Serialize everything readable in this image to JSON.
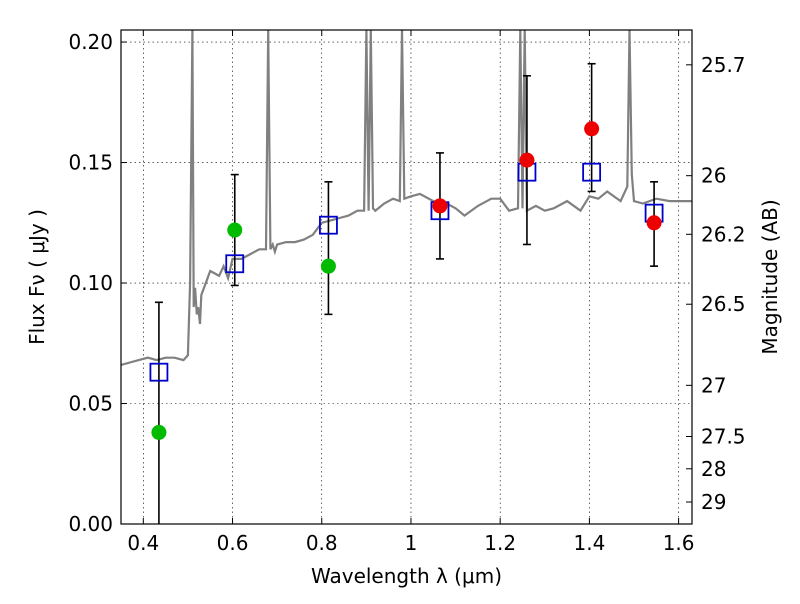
{
  "chart_data": {
    "type": "scatter",
    "xlabel": "Wavelength  λ (μm)",
    "ylabel": "Flux  Fν  ( μJy )",
    "ylabel_right": "Magnitude (AB)",
    "xlim": [
      0.35,
      1.63
    ],
    "ylim": [
      0.0,
      0.205
    ],
    "grid": true,
    "grid_style": "dotted",
    "x_ticks": [
      {
        "value": 0.4,
        "label": "0.4"
      },
      {
        "value": 0.6,
        "label": "0.6"
      },
      {
        "value": 0.8,
        "label": "0.8"
      },
      {
        "value": 1.0,
        "label": "1"
      },
      {
        "value": 1.2,
        "label": "1.2"
      },
      {
        "value": 1.4,
        "label": "1.4"
      },
      {
        "value": 1.6,
        "label": "1.6"
      }
    ],
    "y_ticks": [
      {
        "value": 0.0,
        "label": "0.00"
      },
      {
        "value": 0.05,
        "label": "0.05"
      },
      {
        "value": 0.1,
        "label": "0.10"
      },
      {
        "value": 0.15,
        "label": "0.15"
      },
      {
        "value": 0.2,
        "label": "0.20"
      }
    ],
    "right_ticks": [
      {
        "value": 25.7,
        "label": "25.7"
      },
      {
        "value": 26.0,
        "label": "26"
      },
      {
        "value": 26.2,
        "label": "26.2"
      },
      {
        "value": 26.5,
        "label": "26.5"
      },
      {
        "value": 27.0,
        "label": "27"
      },
      {
        "value": 27.5,
        "label": "27.5"
      },
      {
        "value": 28.0,
        "label": "28"
      },
      {
        "value": 29.0,
        "label": "29"
      }
    ],
    "series": [
      {
        "type": "line",
        "color": "#808080",
        "x": [
          0.35,
          0.37,
          0.39,
          0.41,
          0.43,
          0.45,
          0.47,
          0.49,
          0.5,
          0.505,
          0.51,
          0.513,
          0.516,
          0.52,
          0.523,
          0.527,
          0.53,
          0.54,
          0.55,
          0.56,
          0.57,
          0.58,
          0.59,
          0.6,
          0.62,
          0.64,
          0.66,
          0.675,
          0.68,
          0.685,
          0.69,
          0.695,
          0.7,
          0.72,
          0.74,
          0.76,
          0.78,
          0.8,
          0.82,
          0.84,
          0.86,
          0.88,
          0.895,
          0.9,
          0.905,
          0.91,
          0.915,
          0.92,
          0.94,
          0.96,
          0.975,
          0.98,
          0.985,
          1.0,
          1.02,
          1.05,
          1.08,
          1.1,
          1.12,
          1.15,
          1.18,
          1.2,
          1.22,
          1.24,
          1.245,
          1.25,
          1.255,
          1.26,
          1.28,
          1.3,
          1.32,
          1.35,
          1.38,
          1.4,
          1.42,
          1.44,
          1.47,
          1.485,
          1.49,
          1.495,
          1.5,
          1.52,
          1.55,
          1.58,
          1.6,
          1.63
        ],
        "y": [
          0.066,
          0.067,
          0.068,
          0.069,
          0.068,
          0.069,
          0.069,
          0.068,
          0.07,
          0.1,
          0.205,
          0.09,
          0.098,
          0.087,
          0.09,
          0.083,
          0.095,
          0.1,
          0.105,
          0.104,
          0.103,
          0.107,
          0.102,
          0.11,
          0.11,
          0.112,
          0.114,
          0.114,
          0.205,
          0.114,
          0.116,
          0.113,
          0.116,
          0.117,
          0.117,
          0.118,
          0.12,
          0.125,
          0.126,
          0.127,
          0.128,
          0.13,
          0.13,
          0.205,
          0.13,
          0.205,
          0.131,
          0.13,
          0.133,
          0.135,
          0.134,
          0.205,
          0.135,
          0.136,
          0.137,
          0.134,
          0.133,
          0.131,
          0.128,
          0.132,
          0.135,
          0.135,
          0.13,
          0.131,
          0.205,
          0.131,
          0.205,
          0.13,
          0.132,
          0.13,
          0.131,
          0.134,
          0.13,
          0.136,
          0.135,
          0.138,
          0.134,
          0.14,
          0.205,
          0.145,
          0.134,
          0.133,
          0.135,
          0.134,
          0.134,
          0.134
        ]
      },
      {
        "type": "scatter",
        "marker": "square-open",
        "color": "#0000cc",
        "x": [
          0.435,
          0.605,
          0.815,
          1.065,
          1.26,
          1.405,
          1.545
        ],
        "y": [
          0.063,
          0.108,
          0.124,
          0.13,
          0.146,
          0.146,
          0.129
        ]
      },
      {
        "type": "scatter",
        "marker": "circle",
        "color": "#00bb00",
        "x": [
          0.435,
          0.605,
          0.815
        ],
        "y": [
          0.038,
          0.122,
          0.107
        ]
      },
      {
        "type": "scatter",
        "marker": "circle",
        "color": "#ee0000",
        "x": [
          1.065,
          1.26,
          1.405,
          1.545
        ],
        "y": [
          0.132,
          0.151,
          0.164,
          0.125
        ]
      },
      {
        "type": "errorbar",
        "color": "#000000",
        "x": [
          0.435,
          0.605,
          0.815,
          1.065,
          1.26,
          1.405,
          1.545
        ],
        "y_low": [
          0.0,
          0.099,
          0.087,
          0.11,
          0.116,
          0.138,
          0.107
        ],
        "y_high": [
          0.092,
          0.145,
          0.142,
          0.154,
          0.186,
          0.191,
          0.142
        ]
      }
    ]
  }
}
